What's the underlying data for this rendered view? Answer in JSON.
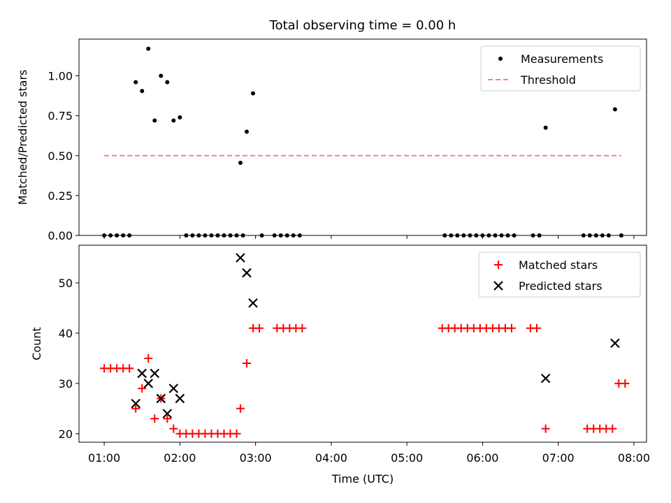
{
  "title": "Total observing time = 0.00 h",
  "chart_data": [
    {
      "type": "scatter",
      "ylabel": "Matched/Predicted stars",
      "ylim": [
        0,
        1.23
      ],
      "yticks": [
        0,
        0.25,
        0.5,
        0.75,
        1.0
      ],
      "ytick_labels": [
        "0.00",
        "0.25",
        "0.50",
        "0.75",
        "1.00"
      ],
      "legend_position": "top-right",
      "series": [
        {
          "name": "Measurements",
          "marker": "dot",
          "color": "#000000",
          "points": [
            [
              "01:00",
              0
            ],
            [
              "01:05",
              0
            ],
            [
              "01:10",
              0
            ],
            [
              "01:15",
              0
            ],
            [
              "01:20",
              0
            ],
            [
              "01:25",
              0.96
            ],
            [
              "01:30",
              0.905
            ],
            [
              "01:35",
              1.17
            ],
            [
              "01:40",
              0.72
            ],
            [
              "01:45",
              1.0
            ],
            [
              "01:50",
              0.96
            ],
            [
              "01:55",
              0.72
            ],
            [
              "02:00",
              0.74
            ],
            [
              "02:05",
              0
            ],
            [
              "02:10",
              0
            ],
            [
              "02:15",
              0
            ],
            [
              "02:20",
              0
            ],
            [
              "02:25",
              0
            ],
            [
              "02:30",
              0
            ],
            [
              "02:35",
              0
            ],
            [
              "02:40",
              0
            ],
            [
              "02:45",
              0
            ],
            [
              "02:50",
              0
            ],
            [
              "02:48",
              0.455
            ],
            [
              "02:53",
              0.65
            ],
            [
              "02:58",
              0.89
            ],
            [
              "03:05",
              0
            ],
            [
              "03:15",
              0
            ],
            [
              "03:20",
              0
            ],
            [
              "03:25",
              0
            ],
            [
              "03:30",
              0
            ],
            [
              "03:35",
              0
            ],
            [
              "05:30",
              0
            ],
            [
              "05:35",
              0
            ],
            [
              "05:40",
              0
            ],
            [
              "05:45",
              0
            ],
            [
              "05:50",
              0
            ],
            [
              "05:55",
              0
            ],
            [
              "06:00",
              0
            ],
            [
              "06:05",
              0
            ],
            [
              "06:10",
              0
            ],
            [
              "06:15",
              0
            ],
            [
              "06:20",
              0
            ],
            [
              "06:25",
              0
            ],
            [
              "06:40",
              0
            ],
            [
              "06:45",
              0
            ],
            [
              "06:50",
              0.675
            ],
            [
              "07:20",
              0
            ],
            [
              "07:25",
              0
            ],
            [
              "07:30",
              0
            ],
            [
              "07:35",
              0
            ],
            [
              "07:40",
              0
            ],
            [
              "07:45",
              0.79
            ],
            [
              "07:50",
              0
            ]
          ]
        },
        {
          "name": "Threshold",
          "type": "line",
          "style": "dashed",
          "color": "#ff8080",
          "points": [
            [
              "01:00",
              0.5
            ],
            [
              "07:50",
              0.5
            ]
          ]
        }
      ]
    },
    {
      "type": "scatter",
      "xlabel": "Time (UTC)",
      "ylabel": "Count",
      "ylim": [
        18.3,
        57.5
      ],
      "yticks": [
        20,
        30,
        40,
        50
      ],
      "ytick_labels": [
        "20",
        "30",
        "40",
        "50"
      ],
      "xlim": [
        "00:40",
        "08:10"
      ],
      "xticks": [
        "01:00",
        "02:00",
        "03:00",
        "04:00",
        "05:00",
        "06:00",
        "07:00",
        "08:00"
      ],
      "xtick_labels": [
        "01:00",
        "02:00",
        "03:00",
        "04:00",
        "05:00",
        "06:00",
        "07:00",
        "08:00"
      ],
      "legend_position": "top-right",
      "series": [
        {
          "name": "Matched stars",
          "marker": "plus",
          "color": "#ff0000",
          "points": [
            [
              "01:00",
              33
            ],
            [
              "01:05",
              33
            ],
            [
              "01:10",
              33
            ],
            [
              "01:15",
              33
            ],
            [
              "01:20",
              33
            ],
            [
              "01:25",
              25
            ],
            [
              "01:30",
              29
            ],
            [
              "01:35",
              35
            ],
            [
              "01:40",
              23
            ],
            [
              "01:45",
              27
            ],
            [
              "01:50",
              23
            ],
            [
              "01:55",
              21
            ],
            [
              "02:00",
              20
            ],
            [
              "02:05",
              20
            ],
            [
              "02:10",
              20
            ],
            [
              "02:15",
              20
            ],
            [
              "02:20",
              20
            ],
            [
              "02:25",
              20
            ],
            [
              "02:30",
              20
            ],
            [
              "02:35",
              20
            ],
            [
              "02:40",
              20
            ],
            [
              "02:45",
              20
            ],
            [
              "02:48",
              25
            ],
            [
              "02:53",
              34
            ],
            [
              "02:58",
              41
            ],
            [
              "03:03",
              41
            ],
            [
              "03:17",
              41
            ],
            [
              "03:22",
              41
            ],
            [
              "03:27",
              41
            ],
            [
              "03:32",
              41
            ],
            [
              "03:37",
              41
            ],
            [
              "05:28",
              41
            ],
            [
              "05:33",
              41
            ],
            [
              "05:38",
              41
            ],
            [
              "05:43",
              41
            ],
            [
              "05:48",
              41
            ],
            [
              "05:53",
              41
            ],
            [
              "05:58",
              41
            ],
            [
              "06:03",
              41
            ],
            [
              "06:08",
              41
            ],
            [
              "06:13",
              41
            ],
            [
              "06:18",
              41
            ],
            [
              "06:23",
              41
            ],
            [
              "06:38",
              41
            ],
            [
              "06:43",
              41
            ],
            [
              "06:50",
              21
            ],
            [
              "07:23",
              21
            ],
            [
              "07:28",
              21
            ],
            [
              "07:33",
              21
            ],
            [
              "07:38",
              21
            ],
            [
              "07:43",
              21
            ],
            [
              "07:48",
              30
            ],
            [
              "07:53",
              30
            ]
          ]
        },
        {
          "name": "Predicted stars",
          "marker": "x",
          "color": "#000000",
          "points": [
            [
              "01:25",
              26
            ],
            [
              "01:30",
              32
            ],
            [
              "01:35",
              30
            ],
            [
              "01:40",
              32
            ],
            [
              "01:45",
              27
            ],
            [
              "01:50",
              24
            ],
            [
              "01:55",
              29
            ],
            [
              "02:00",
              27
            ],
            [
              "02:48",
              55
            ],
            [
              "02:53",
              52
            ],
            [
              "02:58",
              46
            ],
            [
              "06:50",
              31
            ],
            [
              "07:45",
              38
            ]
          ]
        }
      ]
    }
  ]
}
